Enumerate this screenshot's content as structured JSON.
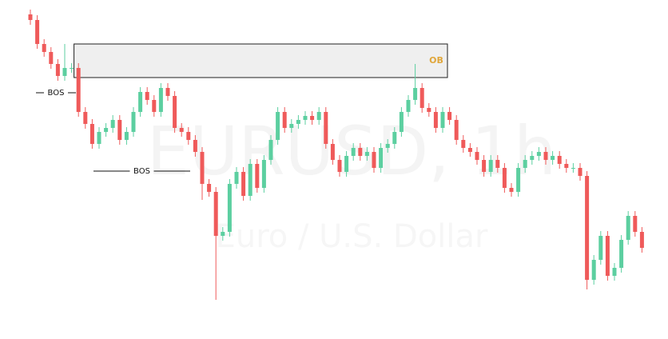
{
  "chart_data": {
    "type": "candlestick",
    "watermark": "EURUSD, 1h",
    "watermark_subtitle": "Euro / U.S. Dollar",
    "up_color": "#5ccfa0",
    "down_color": "#ef5a5a",
    "ylim": [
      0,
      424
    ],
    "open": [
      406,
      399,
      369,
      359,
      344,
      329,
      339,
      339,
      284,
      269,
      244,
      259,
      264,
      274,
      249,
      259,
      284,
      309,
      299,
      284,
      314,
      304,
      264,
      259,
      249,
      234,
      194,
      184,
      129,
      134,
      194,
      209,
      179,
      219,
      189,
      224,
      249,
      284,
      264,
      269,
      274,
      279,
      274,
      284,
      244,
      224,
      209,
      229,
      239,
      229,
      234,
      214,
      239,
      244,
      259,
      284,
      299,
      314,
      289,
      284,
      264,
      284,
      274,
      249,
      239,
      234,
      224,
      209,
      224,
      214,
      189,
      184,
      214,
      224,
      229,
      234,
      224,
      229,
      219,
      214,
      214,
      204,
      74,
      99,
      129,
      79,
      89,
      124,
      154,
      134
    ],
    "high": [
      412,
      405,
      375,
      365,
      350,
      369,
      345,
      345,
      290,
      275,
      265,
      270,
      280,
      280,
      265,
      290,
      315,
      315,
      305,
      320,
      320,
      310,
      270,
      265,
      255,
      240,
      200,
      190,
      140,
      200,
      215,
      215,
      225,
      225,
      230,
      255,
      290,
      290,
      275,
      280,
      285,
      285,
      290,
      290,
      250,
      230,
      235,
      245,
      245,
      240,
      240,
      245,
      250,
      265,
      290,
      305,
      344,
      320,
      295,
      290,
      290,
      290,
      280,
      255,
      245,
      240,
      230,
      230,
      230,
      220,
      195,
      220,
      230,
      235,
      240,
      240,
      235,
      235,
      225,
      220,
      220,
      210,
      105,
      135,
      135,
      95,
      130,
      160,
      160,
      140
    ],
    "low": [
      393,
      363,
      353,
      338,
      323,
      323,
      333,
      278,
      263,
      238,
      238,
      253,
      258,
      243,
      243,
      253,
      278,
      293,
      278,
      278,
      298,
      258,
      253,
      243,
      228,
      174,
      178,
      49,
      123,
      128,
      188,
      173,
      173,
      183,
      183,
      218,
      243,
      258,
      258,
      263,
      268,
      268,
      268,
      238,
      218,
      203,
      203,
      223,
      223,
      223,
      208,
      208,
      233,
      238,
      253,
      278,
      293,
      283,
      278,
      258,
      258,
      268,
      243,
      233,
      228,
      218,
      203,
      203,
      208,
      183,
      178,
      178,
      208,
      218,
      223,
      218,
      218,
      213,
      208,
      208,
      198,
      62,
      68,
      93,
      73,
      73,
      83,
      118,
      128,
      108
    ],
    "close": [
      399,
      369,
      359,
      344,
      329,
      339,
      339,
      284,
      269,
      244,
      259,
      264,
      274,
      249,
      259,
      284,
      309,
      299,
      284,
      314,
      304,
      264,
      259,
      249,
      234,
      194,
      184,
      129,
      134,
      194,
      209,
      179,
      219,
      189,
      224,
      249,
      284,
      264,
      269,
      274,
      279,
      274,
      284,
      244,
      224,
      209,
      229,
      239,
      229,
      234,
      214,
      239,
      244,
      259,
      284,
      299,
      314,
      289,
      284,
      264,
      284,
      274,
      249,
      239,
      234,
      224,
      209,
      224,
      214,
      189,
      184,
      214,
      224,
      229,
      234,
      224,
      229,
      219,
      214,
      214,
      204,
      74,
      99,
      129,
      79,
      89,
      124,
      154,
      134,
      114
    ],
    "order_block": {
      "label": "OB",
      "top": 369,
      "bottom": 327
    },
    "bos": [
      {
        "label": "BOS",
        "level": 308
      },
      {
        "label": "BOS",
        "level": 210
      }
    ]
  }
}
